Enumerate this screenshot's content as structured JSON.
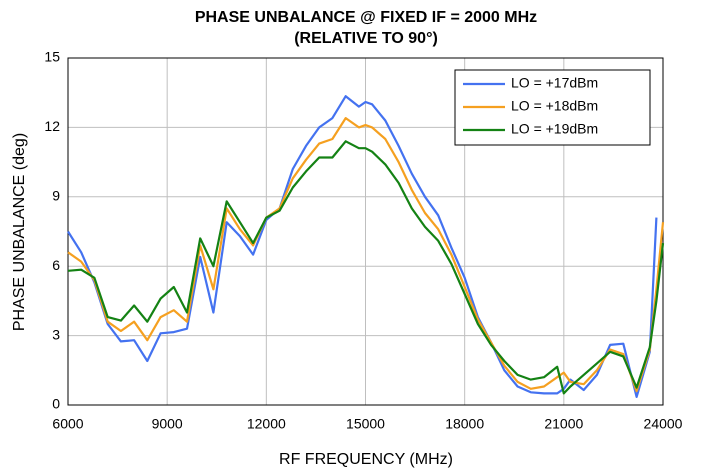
{
  "chart_data": {
    "type": "line",
    "title": [
      "PHASE UNBALANCE @ FIXED IF = 2000 MHz",
      "(RELATIVE TO 90°)"
    ],
    "x_label": "RF FREQUENCY (MHz)",
    "y_label": "PHASE UNBALANCE (deg)",
    "x": [
      6000,
      6400,
      6800,
      7200,
      7600,
      8000,
      8400,
      8800,
      9200,
      9600,
      10000,
      10400,
      10800,
      11200,
      11600,
      12000,
      12400,
      12800,
      13200,
      13600,
      14000,
      14400,
      14800,
      15000,
      15200,
      15600,
      16000,
      16400,
      16800,
      17200,
      17600,
      18000,
      18400,
      18800,
      19200,
      19600,
      20000,
      20400,
      20800,
      21000,
      21200,
      21600,
      22000,
      22400,
      22800,
      23200,
      23600,
      23800,
      24000
    ],
    "series": [
      {
        "name": "LO = +17dBm",
        "color": "#4472f0",
        "values": [
          7.5,
          6.6,
          5.3,
          3.5,
          2.75,
          2.8,
          1.9,
          3.1,
          3.15,
          3.3,
          6.4,
          4.0,
          7.9,
          7.3,
          6.5,
          8.0,
          8.5,
          10.2,
          11.2,
          12.0,
          12.4,
          13.35,
          12.9,
          13.1,
          13.0,
          12.3,
          11.2,
          10.0,
          9.0,
          8.2,
          6.8,
          5.5,
          3.8,
          2.7,
          1.5,
          0.8,
          0.55,
          0.5,
          0.5,
          0.7,
          1.1,
          0.65,
          1.3,
          2.6,
          2.65,
          0.35,
          2.3,
          8.1,
          null
        ]
      },
      {
        "name": "LO = +18dBm",
        "color": "#f5a020",
        "values": [
          6.6,
          6.2,
          5.4,
          3.6,
          3.2,
          3.6,
          2.8,
          3.8,
          4.1,
          3.6,
          6.9,
          5.0,
          8.5,
          7.6,
          6.9,
          8.1,
          8.5,
          9.8,
          10.6,
          11.3,
          11.5,
          12.4,
          12.0,
          12.1,
          12.0,
          11.5,
          10.5,
          9.3,
          8.3,
          7.6,
          6.5,
          5.1,
          3.7,
          2.7,
          1.7,
          1.0,
          0.7,
          0.8,
          1.2,
          1.4,
          1.0,
          0.9,
          1.5,
          2.4,
          2.2,
          0.6,
          2.4,
          5.0,
          7.9
        ]
      },
      {
        "name": "LO = +19dBm",
        "color": "#148214",
        "values": [
          5.8,
          5.85,
          5.5,
          3.8,
          3.65,
          4.3,
          3.6,
          4.6,
          5.1,
          4.0,
          7.2,
          6.0,
          8.8,
          7.9,
          7.0,
          8.1,
          8.4,
          9.4,
          10.1,
          10.7,
          10.7,
          11.4,
          11.1,
          11.1,
          10.95,
          10.4,
          9.6,
          8.5,
          7.7,
          7.1,
          6.1,
          4.8,
          3.5,
          2.6,
          1.9,
          1.3,
          1.1,
          1.2,
          1.65,
          0.5,
          0.8,
          1.3,
          1.8,
          2.3,
          2.1,
          0.75,
          2.5,
          4.5,
          7.0
        ]
      }
    ],
    "xlim": [
      6000,
      24000
    ],
    "xticks": [
      6000,
      9000,
      12000,
      15000,
      18000,
      21000,
      24000
    ],
    "ylim": [
      0,
      15
    ],
    "yticks": [
      0,
      3,
      6,
      9,
      12,
      15
    ],
    "grid": true,
    "legend": "upper right"
  }
}
